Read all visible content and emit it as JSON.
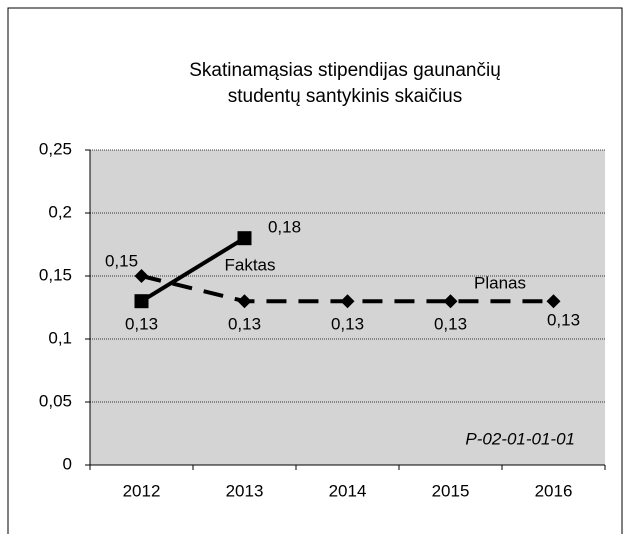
{
  "chart_data": {
    "type": "line",
    "title": "Skatinamąsias stipendijas gaunančių studentų santykinis skaičius",
    "annotation": "P-02-01-01-01",
    "categories": [
      "2012",
      "2013",
      "2014",
      "2015",
      "2016"
    ],
    "series": [
      {
        "name": "Faktas",
        "color": "#000000",
        "marker": "square",
        "dashed": false,
        "values": [
          0.13,
          0.18,
          null,
          null,
          null
        ],
        "value_labels": [
          "0,13",
          "0,18",
          null,
          null,
          null
        ]
      },
      {
        "name": "Planas",
        "color": "#000000",
        "marker": "diamond",
        "dashed": true,
        "values": [
          0.15,
          0.13,
          0.13,
          0.13,
          0.13
        ],
        "value_labels": [
          "0,15",
          "0,13",
          "0,13",
          "0,13",
          "0,13"
        ]
      }
    ],
    "ylim": [
      0,
      0.25
    ],
    "yticks": [
      0,
      {
        "value": 0.05,
        "label": "0,05"
      },
      {
        "value": 0.1,
        "label": "0,1"
      },
      {
        "value": 0.15,
        "label": "0,15"
      },
      {
        "value": 0.2,
        "label": "0,2"
      },
      {
        "value": 0.25,
        "label": "0,25"
      }
    ],
    "grid": true,
    "plot_background": "#d4d4d4"
  }
}
